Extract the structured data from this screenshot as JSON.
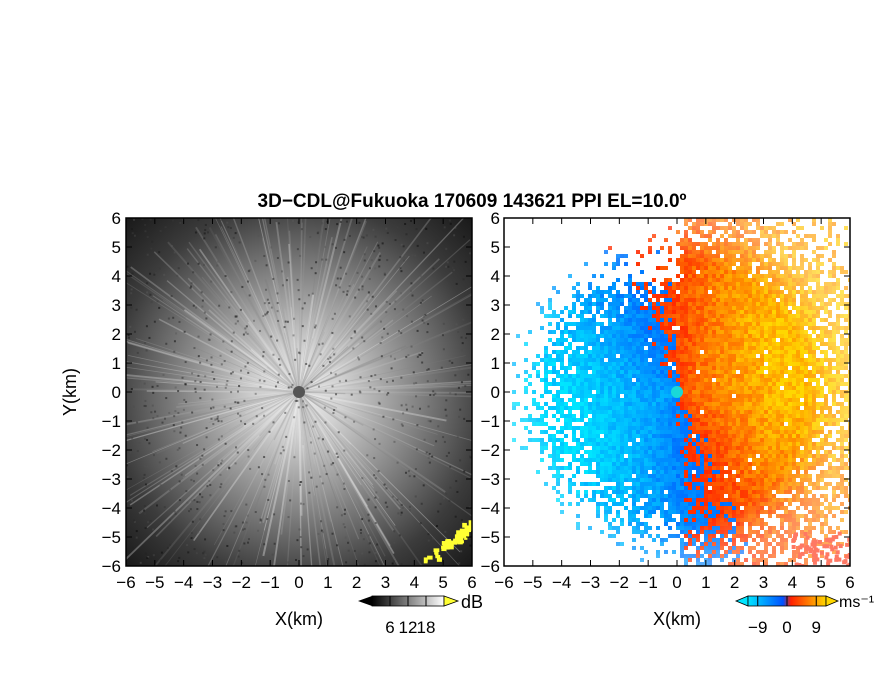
{
  "title": "3D−CDL@Fukuoka 170609 143621 PPI EL=10.0º",
  "chart_data": [
    {
      "type": "heatmap",
      "panel": "left",
      "variable": "reflectivity (grayscale)",
      "xlabel": "X(km)",
      "ylabel": "Y(km)",
      "xlim": [
        -6,
        6
      ],
      "ylim": [
        -6,
        6
      ],
      "ticks": [
        -6,
        -5,
        -4,
        -3,
        -2,
        -1,
        0,
        1,
        2,
        3,
        4,
        5,
        6
      ],
      "tick_labels": [
        "−6",
        "−5",
        "−4",
        "−3",
        "−2",
        "−1",
        "0",
        "1",
        "2",
        "3",
        "4",
        "5",
        "6"
      ],
      "colorbar": {
        "unit": "dB",
        "ticks": [
          6,
          12,
          18
        ],
        "tick_labels": [
          "6",
          "12",
          "18"
        ],
        "range": [
          0,
          24
        ],
        "colors": [
          "#000000",
          "#ffffff"
        ],
        "over_color": "#ffff33"
      }
    },
    {
      "type": "heatmap",
      "panel": "right",
      "variable": "Doppler velocity",
      "xlabel": "X(km)",
      "xlim": [
        -6,
        6
      ],
      "ylim": [
        -6,
        6
      ],
      "ticks": [
        -6,
        -5,
        -4,
        -3,
        -2,
        -1,
        0,
        1,
        2,
        3,
        4,
        5,
        6
      ],
      "tick_labels": [
        "−6",
        "−5",
        "−4",
        "−3",
        "−2",
        "−1",
        "0",
        "1",
        "2",
        "3",
        "4",
        "5",
        "6"
      ],
      "colorbar": {
        "unit": "ms⁻¹",
        "ticks": [
          -9,
          0,
          9
        ],
        "tick_labels": [
          "−9",
          "0",
          "9"
        ],
        "range": [
          -12,
          12
        ],
        "colors": [
          "#00e5ff",
          "#0050ff",
          "#ff2000",
          "#ffd700"
        ]
      }
    }
  ]
}
